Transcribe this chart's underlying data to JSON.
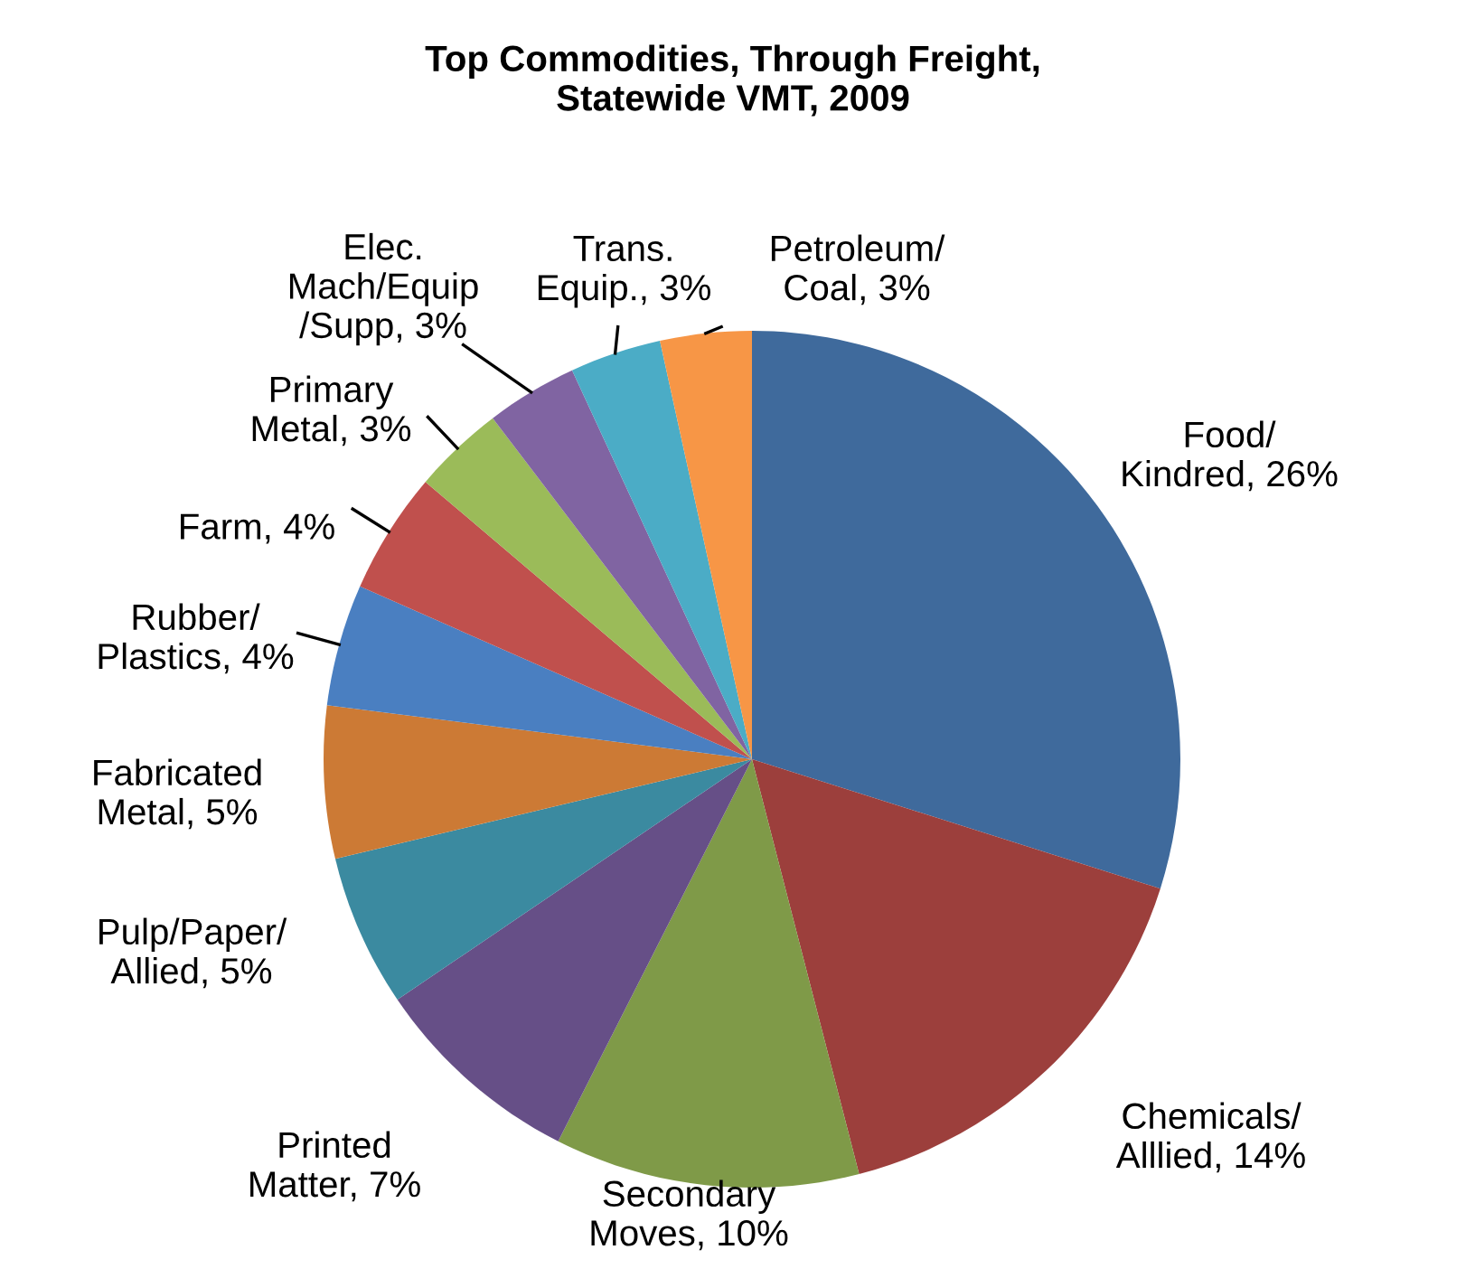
{
  "chart_data": {
    "type": "pie",
    "title": "Top Commodities, Through Freight,\nStatewide VMT, 2009",
    "categories": [
      "Food/\nKindred",
      "Chemicals/\nAlllied",
      "Secondary\nMoves",
      "Printed\nMatter",
      "Pulp/Paper/\nAllied",
      "Fabricated\nMetal",
      "Rubber/\nPlastics",
      "Farm",
      "Primary\nMetal",
      "Elec.\nMach/Equip\n/Supp",
      "Trans.\nEquip.",
      "Petroleum/\nCoal"
    ],
    "values": [
      26,
      14,
      10,
      7,
      5,
      5,
      4,
      4,
      3,
      3,
      3,
      3
    ],
    "value_labels": [
      "26%",
      "14%",
      "10%",
      "7%",
      "5%",
      "5%",
      "4%",
      "4%",
      "3%",
      "3%",
      "3%",
      "3%"
    ],
    "colors": [
      "#3f6a9c",
      "#9c3f3c",
      "#7f9a48",
      "#664f87",
      "#3b8aa0",
      "#cc7a35",
      "#4a7fc1",
      "#c0504d",
      "#9bbb59",
      "#8064a2",
      "#4bacc6",
      "#f79646"
    ]
  }
}
